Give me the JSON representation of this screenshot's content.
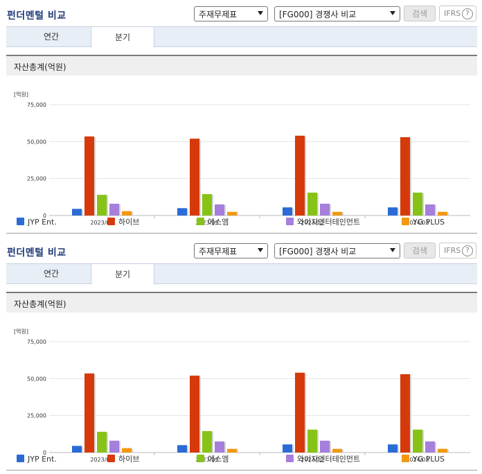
{
  "panels": [
    {
      "title": "펀더멘털 비교",
      "select_item": "주재무제표",
      "select_compare": "[FG000] 경쟁사 비교",
      "search_label": "검색",
      "ifrs_label": "IFRS",
      "ifrs_help": "?",
      "tabs": [
        {
          "label": "연간"
        },
        {
          "label": "분기"
        }
      ],
      "active_tab": 1,
      "section_title": "자산총계(억원)"
    },
    {
      "title": "펀더멘털 비교",
      "select_item": "주재무제표",
      "select_compare": "[FG000] 경쟁사 비교",
      "search_label": "검색",
      "ifrs_label": "IFRS",
      "ifrs_help": "?",
      "tabs": [
        {
          "label": "연간"
        },
        {
          "label": "분기"
        }
      ],
      "active_tab": 1,
      "section_title": "자산총계(억원)"
    }
  ],
  "chart_data": [
    {
      "type": "bar",
      "unit_label": "[억원]",
      "categories": [
        "2023/06",
        "2023/09",
        "2023/12",
        "2024/03"
      ],
      "ylim": [
        0,
        75000
      ],
      "yticks": [
        "0",
        "25,000",
        "50,000",
        "75,000"
      ],
      "grid": true,
      "legend": "bottom",
      "series": [
        {
          "name": "JYP Ent.",
          "color": "#2a6bd6",
          "values": [
            4500,
            5000,
            5500,
            5500
          ]
        },
        {
          "name": "하이브",
          "color": "#d63a0a",
          "values": [
            53500,
            52000,
            54000,
            53000
          ]
        },
        {
          "name": "에스엠",
          "color": "#86c316",
          "values": [
            14000,
            14500,
            15500,
            15500
          ]
        },
        {
          "name": "와이지엔터테인먼트",
          "color": "#a57fdb",
          "values": [
            8000,
            7500,
            8000,
            7500
          ]
        },
        {
          "name": "YG PLUS",
          "color": "#f39813",
          "values": [
            3000,
            2500,
            2500,
            2500
          ]
        }
      ]
    },
    {
      "type": "bar",
      "unit_label": "[억원]",
      "categories": [
        "2023/06",
        "2023/09",
        "2023/12",
        "2024/03"
      ],
      "ylim": [
        0,
        75000
      ],
      "yticks": [
        "0",
        "25,000",
        "50,000",
        "75,000"
      ],
      "grid": true,
      "legend": "bottom",
      "series": [
        {
          "name": "JYP Ent.",
          "color": "#2a6bd6",
          "values": [
            4500,
            5000,
            5500,
            5500
          ]
        },
        {
          "name": "하이브",
          "color": "#d63a0a",
          "values": [
            53500,
            52000,
            54000,
            53000
          ]
        },
        {
          "name": "에스엠",
          "color": "#86c316",
          "values": [
            14000,
            14500,
            15500,
            15500
          ]
        },
        {
          "name": "와이지엔터테인먼트",
          "color": "#a57fdb",
          "values": [
            8000,
            7500,
            8000,
            7500
          ]
        },
        {
          "name": "YG PLUS",
          "color": "#f39813",
          "values": [
            3000,
            2500,
            2500,
            2500
          ]
        }
      ]
    }
  ]
}
